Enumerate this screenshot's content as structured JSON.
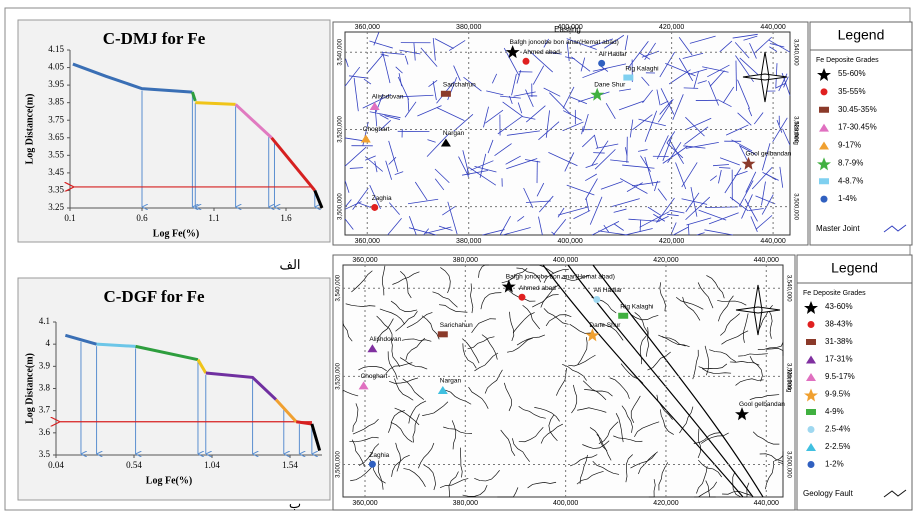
{
  "chart_data": [
    {
      "type": "line",
      "title": "C-DMJ for Fe",
      "x_label": "Log Fe(%)",
      "y_label": "Log Distance(m)",
      "caption": "الف",
      "xlim": [
        0.1,
        1.85
      ],
      "ylim": [
        3.25,
        4.15
      ],
      "xticks": [
        0.1,
        0.6,
        1.1,
        1.6
      ],
      "yticks": [
        4.15,
        4.05,
        3.95,
        3.85,
        3.75,
        3.65,
        3.55,
        3.45,
        3.35,
        3.25
      ],
      "series": [
        {
          "color": "#3a6fb5",
          "x": [
            0.12,
            0.35,
            0.6,
            0.95
          ],
          "values": [
            4.07,
            4.0,
            3.93,
            3.91
          ]
        },
        {
          "color": "#2e9e3e",
          "x": [
            0.95,
            0.97
          ],
          "values": [
            3.91,
            3.86
          ]
        },
        {
          "color": "#f0c419",
          "x": [
            0.97,
            1.25
          ],
          "values": [
            3.85,
            3.84
          ]
        },
        {
          "color": "#e07ac0",
          "x": [
            1.25,
            1.5
          ],
          "values": [
            3.84,
            3.65
          ]
        },
        {
          "color": "#d62020",
          "x": [
            1.5,
            1.8
          ],
          "values": [
            3.65,
            3.35
          ]
        },
        {
          "color": "#000000",
          "x": [
            1.8,
            1.85
          ],
          "values": [
            3.35,
            3.25
          ]
        }
      ],
      "drop_x": [
        0.6,
        0.95,
        0.97,
        1.25,
        1.48,
        1.52,
        1.8
      ],
      "threshold": 3.37,
      "threshold_color": "#d62020"
    },
    {
      "type": "line",
      "title": "C-DGF for Fe",
      "x_label": "Log Fe(%)",
      "y_label": "Log Distance(m)",
      "caption": "ب",
      "xlim": [
        0.04,
        1.745
      ],
      "ylim": [
        3.5,
        4.1
      ],
      "xticks": [
        0.04,
        0.54,
        1.04,
        1.54
      ],
      "yticks": [
        4.1,
        4,
        3.9,
        3.8,
        3.7,
        3.6,
        3.5
      ],
      "series": [
        {
          "color": "#3a6fb5",
          "x": [
            0.1,
            0.3
          ],
          "values": [
            4.04,
            4.0
          ]
        },
        {
          "color": "#6cc6e8",
          "x": [
            0.3,
            0.55
          ],
          "values": [
            4.0,
            3.99
          ]
        },
        {
          "color": "#2e9e3e",
          "x": [
            0.55,
            0.95
          ],
          "values": [
            3.99,
            3.93
          ]
        },
        {
          "color": "#f0c419",
          "x": [
            0.95,
            1.0
          ],
          "values": [
            3.93,
            3.87
          ]
        },
        {
          "color": "#7030a0",
          "x": [
            1.0,
            1.3,
            1.45
          ],
          "values": [
            3.87,
            3.85,
            3.75
          ]
        },
        {
          "color": "#f0a030",
          "x": [
            1.45,
            1.58
          ],
          "values": [
            3.75,
            3.65
          ]
        },
        {
          "color": "#d62020",
          "x": [
            1.58,
            1.68
          ],
          "values": [
            3.65,
            3.64
          ]
        },
        {
          "color": "#000000",
          "x": [
            1.68,
            1.73
          ],
          "values": [
            3.64,
            3.52
          ]
        }
      ],
      "drop_x": [
        0.2,
        0.3,
        0.55,
        0.95,
        1.0,
        1.3,
        1.5,
        1.6,
        1.68
      ],
      "threshold": 3.65,
      "threshold_color": "#d62020"
    }
  ],
  "maps": [
    {
      "x_axis_title": "Easting",
      "y_axis_title": "Northing",
      "x_labels": [
        "360,000",
        "380,000",
        "400,000",
        "420,000",
        "440,000"
      ],
      "y_labels": [
        "3,540,000",
        "3,520,000",
        "3,500,000"
      ],
      "places": [
        "Bafgh jonoobe bon anar(Hemat abad)",
        "Ahmed abad",
        "Sarichahun",
        "Alishdovan",
        "Choghart",
        "Dane Shur",
        "Rig Kalaghi",
        "Ali Hadlar",
        "Nargan",
        "Zaghia",
        "Gool gelbandan"
      ],
      "legend": {
        "title": "Legend",
        "subtitle": "Fe Deposite Grades",
        "items": [
          {
            "label": "55-60%",
            "color": "#000000"
          },
          {
            "label": "35-55%",
            "color": "#e02020"
          },
          {
            "label": "30.45-35%",
            "color": "#8b3a2a"
          },
          {
            "label": "17-30.45%",
            "color": "#e070c0"
          },
          {
            "label": "9-17%",
            "color": "#f0a030"
          },
          {
            "label": "8.7-9%",
            "color": "#40b040"
          },
          {
            "label": "4-8.7%",
            "color": "#7fd0f0"
          },
          {
            "label": "1-4%",
            "color": "#3060c0"
          }
        ],
        "footer": "Master Joint"
      }
    },
    {
      "x_axis_title": "",
      "y_axis_title": "Northing",
      "x_labels": [
        "360,000",
        "380,000",
        "400,000",
        "420,000",
        "440,000"
      ],
      "y_labels": [
        "3,540,000",
        "3,520,000",
        "3,500,000"
      ],
      "places": [
        "Bafgh jonoobe bon anar(Hemat abad)",
        "Ahmed abad",
        "Sarichahun",
        "Alishdovan",
        "Choghart",
        "Dane Shur",
        "Rig Kalaghi",
        "Ali Hadlar",
        "Nargan",
        "Zaghia",
        "Gool gelbandan"
      ],
      "legend": {
        "title": "Legend",
        "subtitle": "Fe Deposite Grades",
        "items": [
          {
            "label": "43-60%",
            "color": "#000000"
          },
          {
            "label": "38-43%",
            "color": "#e02020"
          },
          {
            "label": "31-38%",
            "color": "#8b3a2a"
          },
          {
            "label": "17-31%",
            "color": "#8030a0"
          },
          {
            "label": "9.5-17%",
            "color": "#e070c0"
          },
          {
            "label": "9-9.5%",
            "color": "#f0a030"
          },
          {
            "label": "4-9%",
            "color": "#40b040"
          },
          {
            "label": "2.5-4%",
            "color": "#9fd8f0"
          },
          {
            "label": "2-2.5%",
            "color": "#40c0e0"
          },
          {
            "label": "1-2%",
            "color": "#3060c0"
          }
        ],
        "footer": "Geology Fault"
      }
    }
  ]
}
